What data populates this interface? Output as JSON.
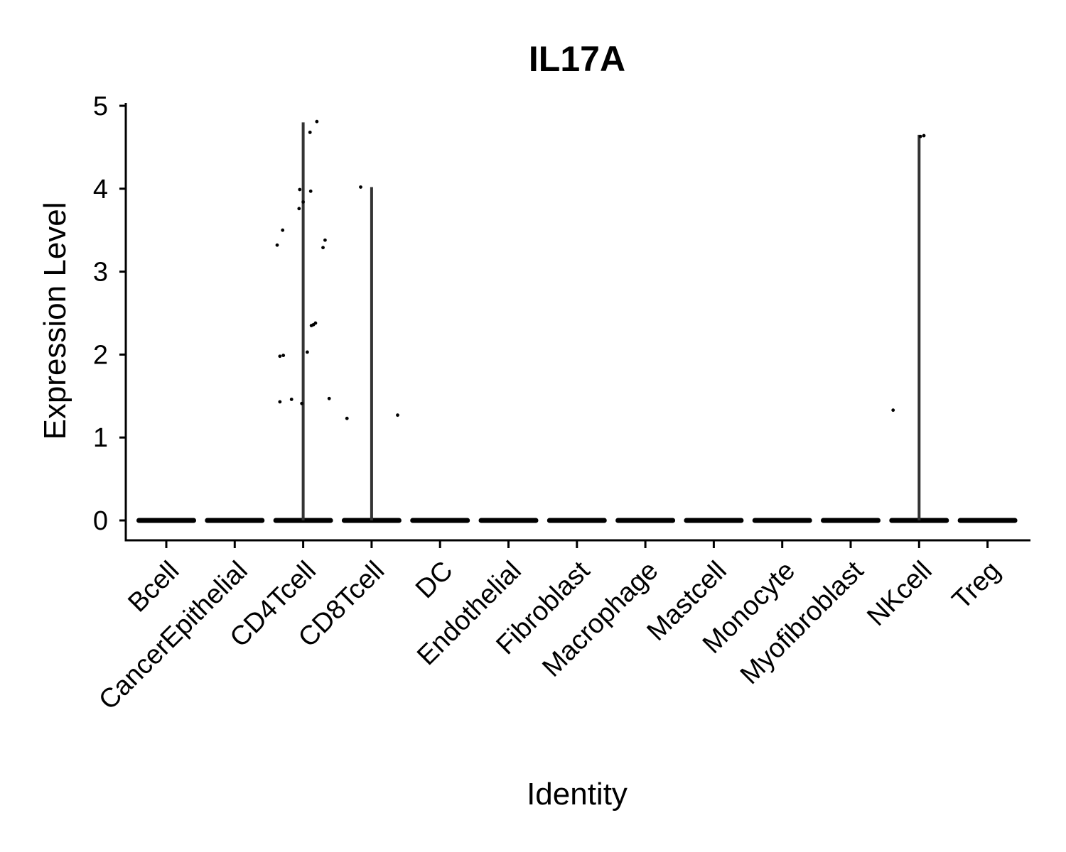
{
  "chart_data": {
    "type": "violin",
    "title": "IL17A",
    "xlabel": "Identity",
    "ylabel": "Expression Level",
    "ylim": [
      -0.25,
      5.05
    ],
    "yticks": [
      0,
      1,
      2,
      3,
      4,
      5
    ],
    "grid": false,
    "legend": "none",
    "categories": [
      "Bcell",
      "CancerEpithelial",
      "CD4Tcell",
      "CD8Tcell",
      "DC",
      "Endothelial",
      "Fibroblast",
      "Macrophage",
      "Mastcell",
      "Monocyte",
      "Myofibroblast",
      "NKcell",
      "Treg"
    ],
    "violin_max": [
      0,
      0,
      4.8,
      4.02,
      0,
      0,
      0,
      0,
      0,
      0,
      0,
      4.65,
      0
    ],
    "points": [
      {
        "category": "CD4Tcell",
        "offset": -0.38,
        "y": 3.32
      },
      {
        "category": "CD4Tcell",
        "offset": -0.3,
        "y": 3.5
      },
      {
        "category": "CD4Tcell",
        "offset": -0.34,
        "y": 1.98
      },
      {
        "category": "CD4Tcell",
        "offset": -0.29,
        "y": 1.99
      },
      {
        "category": "CD4Tcell",
        "offset": -0.34,
        "y": 1.43
      },
      {
        "category": "CD4Tcell",
        "offset": -0.17,
        "y": 1.46
      },
      {
        "category": "CD4Tcell",
        "offset": -0.06,
        "y": 3.76
      },
      {
        "category": "CD4Tcell",
        "offset": -0.05,
        "y": 3.99
      },
      {
        "category": "CD4Tcell",
        "offset": 0.0,
        "y": 3.84
      },
      {
        "category": "CD4Tcell",
        "offset": -0.02,
        "y": 1.41
      },
      {
        "category": "CD4Tcell",
        "offset": 0.06,
        "y": 2.03
      },
      {
        "category": "CD4Tcell",
        "offset": 0.1,
        "y": 4.68
      },
      {
        "category": "CD4Tcell",
        "offset": 0.2,
        "y": 4.81
      },
      {
        "category": "CD4Tcell",
        "offset": 0.11,
        "y": 3.97
      },
      {
        "category": "CD4Tcell",
        "offset": 0.12,
        "y": 2.35
      },
      {
        "category": "CD4Tcell",
        "offset": 0.15,
        "y": 2.36
      },
      {
        "category": "CD4Tcell",
        "offset": 0.18,
        "y": 2.38
      },
      {
        "category": "CD4Tcell",
        "offset": 0.29,
        "y": 3.29
      },
      {
        "category": "CD4Tcell",
        "offset": 0.32,
        "y": 3.38
      },
      {
        "category": "CD4Tcell",
        "offset": 0.38,
        "y": 1.47
      },
      {
        "category": "CD8Tcell",
        "offset": -0.36,
        "y": 1.23
      },
      {
        "category": "CD8Tcell",
        "offset": -0.16,
        "y": 4.02
      },
      {
        "category": "CD8Tcell",
        "offset": 0.38,
        "y": 1.27
      },
      {
        "category": "NKcell",
        "offset": -0.38,
        "y": 1.33
      },
      {
        "category": "NKcell",
        "offset": 0.02,
        "y": 4.63
      },
      {
        "category": "NKcell",
        "offset": 0.07,
        "y": 4.64
      }
    ]
  }
}
